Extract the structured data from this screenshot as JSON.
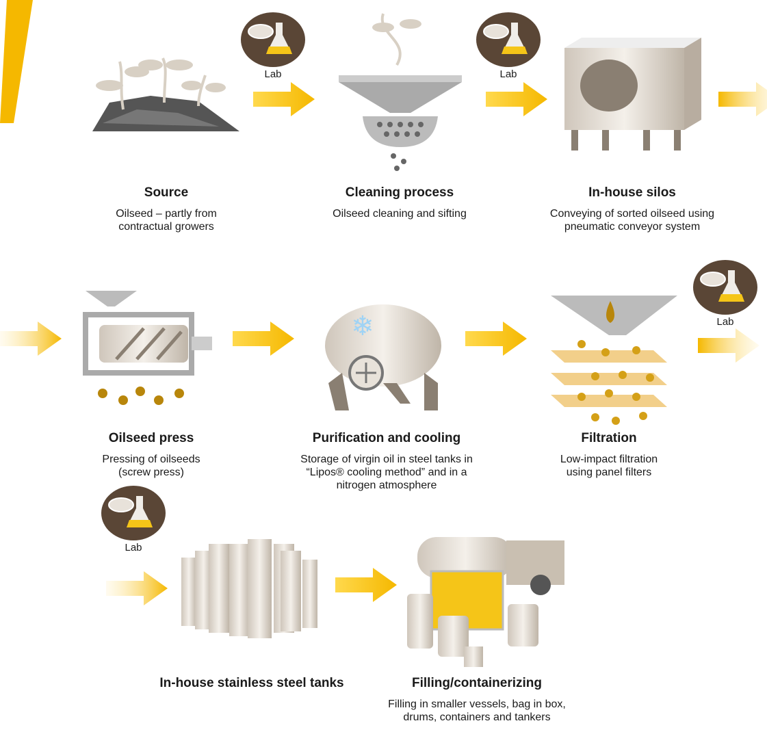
{
  "labs": [
    {
      "label": "Lab"
    },
    {
      "label": "Lab"
    },
    {
      "label": "Lab"
    },
    {
      "label": "Lab"
    }
  ],
  "steps": [
    {
      "title": "Source",
      "description": [
        "Oilseed – partly from",
        "contractual growers"
      ]
    },
    {
      "title": "Cleaning process",
      "description": [
        "Oilseed cleaning and sifting"
      ]
    },
    {
      "title": "In-house silos",
      "description": [
        "Conveying of sorted oilseed using",
        "pneumatic conveyor system"
      ]
    },
    {
      "title": "Oilseed press",
      "description": [
        "Pressing of oilseeds",
        "(screw press)"
      ]
    },
    {
      "title": "Purification and cooling",
      "description": [
        "Storage of virgin oil in steel tanks in",
        "“Lipos® cooling method” and in a",
        "nitrogen atmosphere"
      ]
    },
    {
      "title": "Filtration",
      "description": [
        "Low-impact filtration",
        "using panel filters"
      ]
    },
    {
      "title": "In-house stainless steel tanks",
      "description": []
    },
    {
      "title": "Filling/containerizing",
      "description": [
        "Filling in smaller vessels, bag in box,",
        "drums, containers and tankers"
      ]
    }
  ]
}
